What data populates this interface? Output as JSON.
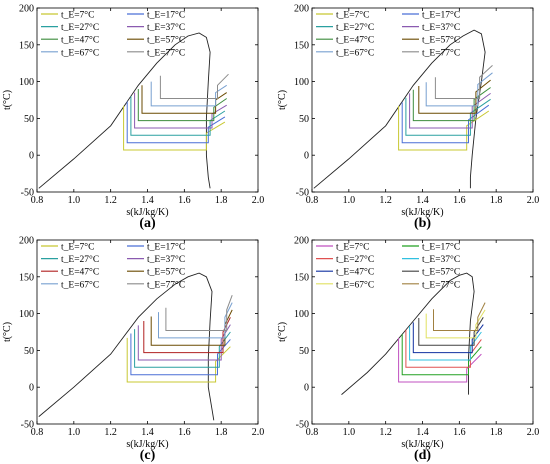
{
  "chart_data": [
    {
      "type": "line",
      "panel_label": "(a)",
      "xlabel": "s(kJ/kg/K)",
      "ylabel": "t(°C)",
      "xlim": [
        0.8,
        2.0
      ],
      "ylim": [
        -50,
        200
      ],
      "x_ticks": [
        "0.8",
        "1.0",
        "1.2",
        "1.4",
        "1.6",
        "1.8",
        "2.0"
      ],
      "y_ticks": [
        "-50",
        "0",
        "50",
        "100",
        "150",
        "200"
      ],
      "legend_position": "top-left",
      "series": [
        {
          "name": "t_E=7°C",
          "color": "#c8c832",
          "points": [
            [
              1.27,
              67
            ],
            [
              1.27,
              7
            ],
            [
              1.72,
              7
            ],
            [
              1.72,
              30
            ],
            [
              1.82,
              45
            ]
          ]
        },
        {
          "name": "t_E=17°C",
          "color": "#4a6fd6",
          "points": [
            [
              1.29,
              73
            ],
            [
              1.29,
              17
            ],
            [
              1.73,
              17
            ],
            [
              1.73,
              38
            ],
            [
              1.82,
              52
            ]
          ]
        },
        {
          "name": "t_E=27°C",
          "color": "#2aa0a0",
          "points": [
            [
              1.31,
              80
            ],
            [
              1.31,
              27
            ],
            [
              1.74,
              27
            ],
            [
              1.74,
              47
            ],
            [
              1.82,
              60
            ]
          ]
        },
        {
          "name": "t_E=37°C",
          "color": "#8a5ab0",
          "points": [
            [
              1.33,
              85
            ],
            [
              1.33,
              37
            ],
            [
              1.75,
              37
            ],
            [
              1.75,
              56
            ],
            [
              1.83,
              68
            ]
          ]
        },
        {
          "name": "t_E=47°C",
          "color": "#3c8c3c",
          "points": [
            [
              1.35,
              90
            ],
            [
              1.35,
              47
            ],
            [
              1.76,
              47
            ],
            [
              1.76,
              65
            ],
            [
              1.83,
              77
            ]
          ]
        },
        {
          "name": "t_E=57°C",
          "color": "#6a4a00",
          "points": [
            [
              1.37,
              95
            ],
            [
              1.37,
              57
            ],
            [
              1.77,
              57
            ],
            [
              1.77,
              75
            ],
            [
              1.83,
              85
            ]
          ]
        },
        {
          "name": "t_E=67°C",
          "color": "#78a0d0",
          "points": [
            [
              1.42,
              100
            ],
            [
              1.42,
              67
            ],
            [
              1.77,
              67
            ],
            [
              1.77,
              85
            ],
            [
              1.83,
              95
            ]
          ]
        },
        {
          "name": "t_E=77°C",
          "color": "#8c8c8c",
          "points": [
            [
              1.47,
              108
            ],
            [
              1.47,
              77
            ],
            [
              1.78,
              77
            ],
            [
              1.78,
              95
            ],
            [
              1.84,
              110
            ]
          ]
        }
      ],
      "saturation_curve": [
        [
          0.81,
          -45
        ],
        [
          1.0,
          -5
        ],
        [
          1.2,
          40
        ],
        [
          1.35,
          95
        ],
        [
          1.45,
          125
        ],
        [
          1.55,
          150
        ],
        [
          1.62,
          162
        ],
        [
          1.68,
          166
        ],
        [
          1.72,
          160
        ],
        [
          1.74,
          140
        ],
        [
          1.73,
          100
        ],
        [
          1.72,
          50
        ],
        [
          1.72,
          0
        ],
        [
          1.73,
          -30
        ],
        [
          1.74,
          -45
        ]
      ]
    },
    {
      "type": "line",
      "panel_label": "(b)",
      "xlabel": "s(kJ/kg/K)",
      "ylabel": "t(°C)",
      "xlim": [
        0.8,
        2.0
      ],
      "ylim": [
        -50,
        200
      ],
      "x_ticks": [
        "0.8",
        "1.0",
        "1.2",
        "1.4",
        "1.6",
        "1.8",
        "2.0"
      ],
      "y_ticks": [
        "-50",
        "0",
        "50",
        "100",
        "150",
        "200"
      ],
      "legend_position": "top-left",
      "series": [
        {
          "name": "t_E=7°C",
          "color": "#c8c832",
          "points": [
            [
              1.27,
              67
            ],
            [
              1.27,
              7
            ],
            [
              1.64,
              7
            ],
            [
              1.64,
              40
            ],
            [
              1.76,
              60
            ]
          ]
        },
        {
          "name": "t_E=17°C",
          "color": "#4a6fd6",
          "points": [
            [
              1.29,
              72
            ],
            [
              1.29,
              17
            ],
            [
              1.65,
              17
            ],
            [
              1.65,
              48
            ],
            [
              1.76,
              68
            ]
          ]
        },
        {
          "name": "t_E=27°C",
          "color": "#2aa0a0",
          "points": [
            [
              1.31,
              78
            ],
            [
              1.31,
              27
            ],
            [
              1.66,
              27
            ],
            [
              1.66,
              57
            ],
            [
              1.77,
              76
            ]
          ]
        },
        {
          "name": "t_E=37°C",
          "color": "#8a5ab0",
          "points": [
            [
              1.33,
              84
            ],
            [
              1.33,
              37
            ],
            [
              1.67,
              37
            ],
            [
              1.67,
              66
            ],
            [
              1.77,
              84
            ]
          ]
        },
        {
          "name": "t_E=47°C",
          "color": "#3c8c3c",
          "points": [
            [
              1.35,
              89
            ],
            [
              1.35,
              47
            ],
            [
              1.68,
              47
            ],
            [
              1.68,
              76
            ],
            [
              1.77,
              92
            ]
          ]
        },
        {
          "name": "t_E=57°C",
          "color": "#6a4a00",
          "points": [
            [
              1.38,
              94
            ],
            [
              1.38,
              57
            ],
            [
              1.69,
              57
            ],
            [
              1.69,
              86
            ],
            [
              1.77,
              102
            ]
          ]
        },
        {
          "name": "t_E=67°C",
          "color": "#78a0d0",
          "points": [
            [
              1.42,
              99
            ],
            [
              1.42,
              67
            ],
            [
              1.7,
              67
            ],
            [
              1.7,
              96
            ],
            [
              1.78,
              112
            ]
          ]
        },
        {
          "name": "t_E=77°C",
          "color": "#8c8c8c",
          "points": [
            [
              1.47,
              106
            ],
            [
              1.47,
              77
            ],
            [
              1.71,
              77
            ],
            [
              1.71,
              106
            ],
            [
              1.78,
              122
            ]
          ]
        }
      ],
      "saturation_curve": [
        [
          0.81,
          -45
        ],
        [
          1.0,
          -5
        ],
        [
          1.2,
          40
        ],
        [
          1.35,
          95
        ],
        [
          1.45,
          125
        ],
        [
          1.55,
          150
        ],
        [
          1.62,
          162
        ],
        [
          1.68,
          170
        ],
        [
          1.72,
          165
        ],
        [
          1.74,
          140
        ],
        [
          1.72,
          100
        ],
        [
          1.69,
          50
        ],
        [
          1.67,
          0
        ],
        [
          1.66,
          -30
        ],
        [
          1.66,
          -45
        ]
      ]
    },
    {
      "type": "line",
      "panel_label": "(c)",
      "xlabel": "s(kJ/kg/K)",
      "ylabel": "t(°C)",
      "xlim": [
        0.8,
        2.0
      ],
      "ylim": [
        -50,
        200
      ],
      "x_ticks": [
        "0.8",
        "1.0",
        "1.2",
        "1.4",
        "1.6",
        "1.8",
        "2.0"
      ],
      "y_ticks": [
        "-50",
        "0",
        "50",
        "100",
        "150",
        "200"
      ],
      "legend_position": "top-left",
      "series": [
        {
          "name": "t_E=7°C",
          "color": "#c8c832",
          "points": [
            [
              1.29,
              67
            ],
            [
              1.29,
              7
            ],
            [
              1.77,
              7
            ],
            [
              1.77,
              35
            ],
            [
              1.85,
              55
            ]
          ]
        },
        {
          "name": "t_E=17°C",
          "color": "#4a6fd6",
          "points": [
            [
              1.31,
              73
            ],
            [
              1.31,
              17
            ],
            [
              1.78,
              17
            ],
            [
              1.78,
              45
            ],
            [
              1.85,
              65
            ]
          ]
        },
        {
          "name": "t_E=27°C",
          "color": "#2aa0a0",
          "points": [
            [
              1.33,
              79
            ],
            [
              1.33,
              27
            ],
            [
              1.79,
              27
            ],
            [
              1.79,
              55
            ],
            [
              1.85,
              75
            ]
          ]
        },
        {
          "name": "t_E=37°C",
          "color": "#8a5ab0",
          "points": [
            [
              1.35,
              84
            ],
            [
              1.35,
              37
            ],
            [
              1.8,
              37
            ],
            [
              1.8,
              65
            ],
            [
              1.85,
              85
            ]
          ]
        },
        {
          "name": "t_E=47°C",
          "color": "#b02020",
          "points": [
            [
              1.38,
              90
            ],
            [
              1.38,
              47
            ],
            [
              1.81,
              47
            ],
            [
              1.81,
              75
            ],
            [
              1.85,
              95
            ]
          ]
        },
        {
          "name": "t_E=57°C",
          "color": "#6a4a00",
          "points": [
            [
              1.42,
              96
            ],
            [
              1.42,
              57
            ],
            [
              1.82,
              57
            ],
            [
              1.82,
              85
            ],
            [
              1.86,
              105
            ]
          ]
        },
        {
          "name": "t_E=67°C",
          "color": "#78a0d0",
          "points": [
            [
              1.46,
              102
            ],
            [
              1.46,
              67
            ],
            [
              1.82,
              67
            ],
            [
              1.82,
              95
            ],
            [
              1.86,
              115
            ]
          ]
        },
        {
          "name": "t_E=77°C",
          "color": "#8c8c8c",
          "points": [
            [
              1.5,
              108
            ],
            [
              1.5,
              77
            ],
            [
              1.83,
              77
            ],
            [
              1.83,
              105
            ],
            [
              1.86,
              125
            ]
          ]
        }
      ],
      "saturation_curve": [
        [
          0.81,
          -40
        ],
        [
          1.0,
          0
        ],
        [
          1.2,
          45
        ],
        [
          1.35,
          95
        ],
        [
          1.45,
          120
        ],
        [
          1.55,
          140
        ],
        [
          1.62,
          150
        ],
        [
          1.68,
          155
        ],
        [
          1.72,
          150
        ],
        [
          1.75,
          130
        ],
        [
          1.74,
          90
        ],
        [
          1.73,
          40
        ],
        [
          1.73,
          0
        ],
        [
          1.75,
          -30
        ],
        [
          1.76,
          -45
        ]
      ]
    },
    {
      "type": "line",
      "panel_label": "(d)",
      "xlabel": "s(kJ/kg/K)",
      "ylabel": "t(°C)",
      "xlim": [
        0.8,
        2.0
      ],
      "ylim": [
        -50,
        200
      ],
      "x_ticks": [
        "0.8",
        "1.0",
        "1.2",
        "1.4",
        "1.6",
        "1.8",
        "2.0"
      ],
      "y_ticks": [
        "-50",
        "0",
        "50",
        "100",
        "150",
        "200"
      ],
      "legend_position": "top-left",
      "series": [
        {
          "name": "t_E=7°C",
          "color": "#c050c0",
          "points": [
            [
              1.27,
              67
            ],
            [
              1.27,
              7
            ],
            [
              1.64,
              7
            ],
            [
              1.64,
              25
            ],
            [
              1.72,
              45
            ]
          ]
        },
        {
          "name": "t_E=17°C",
          "color": "#22a022",
          "points": [
            [
              1.29,
              72
            ],
            [
              1.29,
              17
            ],
            [
              1.65,
              17
            ],
            [
              1.65,
              35
            ],
            [
              1.72,
              55
            ]
          ]
        },
        {
          "name": "t_E=27°C",
          "color": "#e05050",
          "points": [
            [
              1.31,
              78
            ],
            [
              1.31,
              27
            ],
            [
              1.66,
              27
            ],
            [
              1.66,
              45
            ],
            [
              1.72,
              65
            ]
          ]
        },
        {
          "name": "t_E=37°C",
          "color": "#30c0e0",
          "points": [
            [
              1.33,
              83
            ],
            [
              1.33,
              37
            ],
            [
              1.66,
              37
            ],
            [
              1.66,
              55
            ],
            [
              1.72,
              75
            ]
          ]
        },
        {
          "name": "t_E=47°C",
          "color": "#1030a0",
          "points": [
            [
              1.35,
              88
            ],
            [
              1.35,
              47
            ],
            [
              1.67,
              47
            ],
            [
              1.67,
              65
            ],
            [
              1.73,
              85
            ]
          ]
        },
        {
          "name": "t_E=57°C",
          "color": "#404040",
          "points": [
            [
              1.38,
              94
            ],
            [
              1.38,
              57
            ],
            [
              1.68,
              57
            ],
            [
              1.68,
              75
            ],
            [
              1.73,
              95
            ]
          ]
        },
        {
          "name": "t_E=67°C",
          "color": "#e0e060",
          "points": [
            [
              1.42,
              100
            ],
            [
              1.42,
              67
            ],
            [
              1.69,
              67
            ],
            [
              1.69,
              85
            ],
            [
              1.74,
              105
            ]
          ]
        },
        {
          "name": "t_E=77°C",
          "color": "#a08040",
          "points": [
            [
              1.46,
              106
            ],
            [
              1.46,
              77
            ],
            [
              1.7,
              77
            ],
            [
              1.7,
              95
            ],
            [
              1.74,
              115
            ]
          ]
        }
      ],
      "saturation_curve": [
        [
          0.96,
          -10
        ],
        [
          1.1,
          20
        ],
        [
          1.2,
          45
        ],
        [
          1.35,
          90
        ],
        [
          1.45,
          120
        ],
        [
          1.55,
          145
        ],
        [
          1.6,
          152
        ],
        [
          1.64,
          155
        ],
        [
          1.67,
          150
        ],
        [
          1.68,
          130
        ],
        [
          1.66,
          90
        ],
        [
          1.65,
          40
        ],
        [
          1.65,
          0
        ],
        [
          1.65,
          -10
        ]
      ]
    }
  ]
}
